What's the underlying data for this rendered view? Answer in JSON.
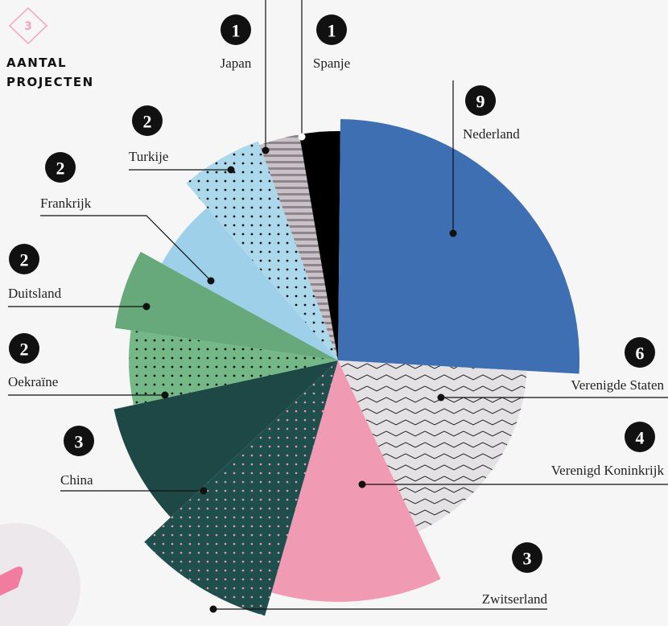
{
  "section": "3",
  "chart_data": {
    "type": "pie",
    "title": "AANTAL PROJECTEN",
    "categories": [
      "Japan",
      "Spanje",
      "Nederland",
      "Verenigde Staten",
      "Verenigd Koninkrijk",
      "Zwitserland",
      "China",
      "Oekraïne",
      "Duitsland",
      "Frankrijk",
      "Turkije"
    ],
    "values": [
      1,
      1,
      9,
      6,
      4,
      3,
      3,
      2,
      2,
      2,
      2
    ],
    "colors": [
      "#c9c1c8",
      "#000000",
      "#3f6fb3",
      "#e4e1e5",
      "#f09ab3",
      "#1f4f4c",
      "#1e4846",
      "#74b888",
      "#67a97b",
      "#9ed0e9",
      "#acd8ec"
    ]
  }
}
